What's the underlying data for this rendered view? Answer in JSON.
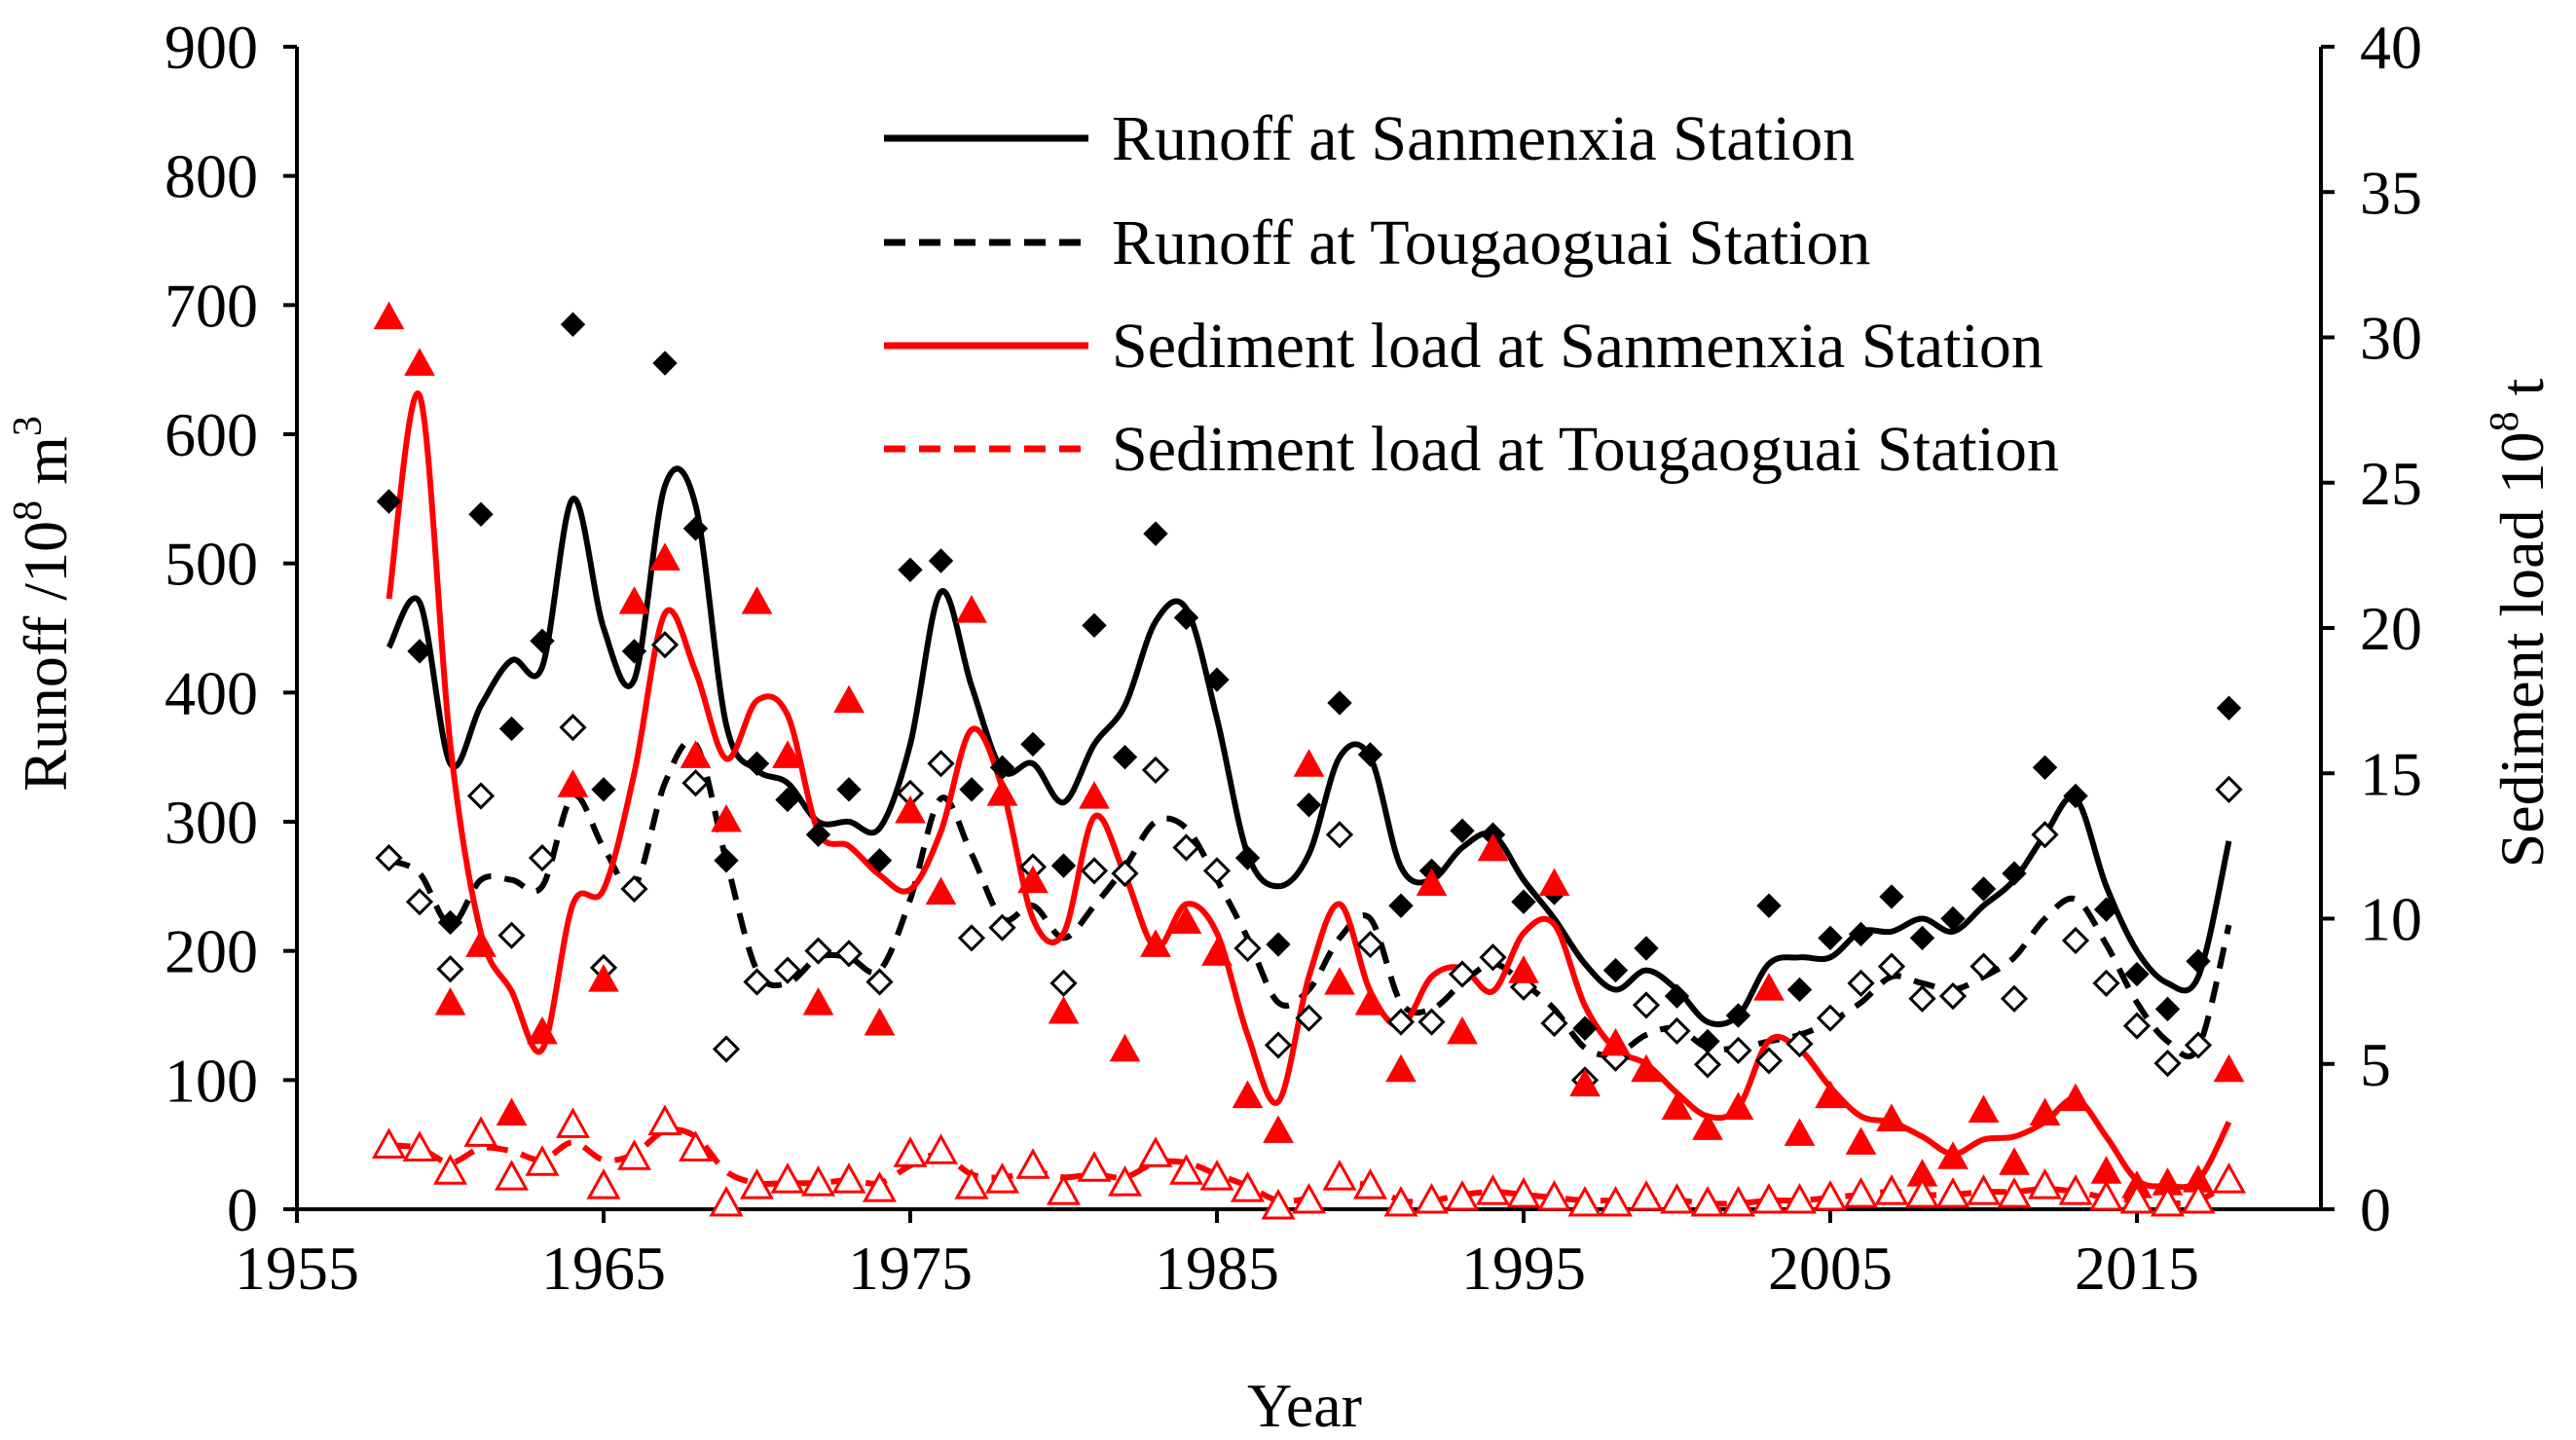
{
  "chart_data": {
    "type": "line",
    "title": "",
    "xlabel": "Year",
    "ylabel_left": "Runoff /10^8 m^3",
    "ylabel_right": "Sediment load 10^8 t",
    "ylabel_left_parts": {
      "main": "Runoff /10",
      "sup1": "8",
      "unit": " m",
      "sup2": "3"
    },
    "ylabel_right_parts": {
      "main": "Sediment load 10",
      "sup1": "8",
      "unit": " t"
    },
    "xlim": [
      1955,
      2021
    ],
    "ylim_left": [
      0,
      900
    ],
    "ylim_right": [
      0,
      40
    ],
    "x_ticks": [
      1955,
      1965,
      1975,
      1985,
      1995,
      2005,
      2015
    ],
    "y_left_ticks": [
      0,
      100,
      200,
      300,
      400,
      500,
      600,
      700,
      800,
      900
    ],
    "y_right_ticks": [
      0,
      5,
      10,
      15,
      20,
      25,
      30,
      35,
      40
    ],
    "legend_position": "top-right",
    "years": [
      1958,
      1959,
      1960,
      1961,
      1962,
      1963,
      1964,
      1965,
      1966,
      1967,
      1968,
      1969,
      1970,
      1971,
      1972,
      1973,
      1974,
      1975,
      1976,
      1977,
      1978,
      1979,
      1980,
      1981,
      1982,
      1983,
      1984,
      1985,
      1986,
      1987,
      1988,
      1989,
      1990,
      1991,
      1992,
      1993,
      1994,
      1995,
      1996,
      1997,
      1998,
      1999,
      2000,
      2001,
      2002,
      2003,
      2004,
      2005,
      2006,
      2007,
      2008,
      2009,
      2010,
      2011,
      2012,
      2013,
      2014,
      2015,
      2016,
      2017,
      2018
    ],
    "series": [
      {
        "name": "Runoff at Sanmenxia Station",
        "axis": "left",
        "color": "#000000",
        "line_style": "solid",
        "marker": "diamond-filled",
        "values": [
          548,
          432,
          222,
          538,
          372,
          440,
          685,
          325,
          432,
          655,
          527,
          270,
          345,
          317,
          290,
          325,
          270,
          495,
          502,
          325,
          342,
          360,
          266,
          452,
          350,
          523,
          458,
          410,
          272,
          205,
          313,
          392,
          352,
          235,
          262,
          293,
          290,
          238,
          245,
          140,
          185,
          202,
          165,
          130,
          150,
          235,
          170,
          210,
          213,
          242,
          210,
          225,
          248,
          260,
          342,
          320,
          232,
          182,
          155,
          192,
          388
        ]
      },
      {
        "name": "Runoff at Tougaoguai Station",
        "axis": "left",
        "color": "#000000",
        "line_style": "dashed",
        "marker": "diamond-open",
        "values": [
          272,
          238,
          186,
          320,
          212,
          272,
          373,
          187,
          248,
          437,
          330,
          124,
          176,
          185,
          200,
          198,
          176,
          322,
          345,
          210,
          218,
          265,
          175,
          262,
          260,
          340,
          280,
          262,
          202,
          127,
          148,
          290,
          205,
          145,
          145,
          182,
          195,
          172,
          144,
          100,
          117,
          158,
          138,
          112,
          123,
          115,
          128,
          148,
          175,
          188,
          163,
          165,
          188,
          163,
          290,
          208,
          175,
          142,
          113,
          127,
          325
        ]
      },
      {
        "name": "Sediment load at Sanmenxia Station",
        "axis": "right",
        "color": "#ff0000",
        "line_style": "solid",
        "marker": "triangle-filled",
        "values": [
          30.7,
          29.1,
          7.1,
          9.1,
          3.3,
          6.1,
          14.6,
          7.9,
          20.9,
          22.4,
          15.6,
          13.4,
          20.9,
          15.6,
          7.1,
          17.5,
          6.4,
          13.7,
          10.9,
          20.6,
          14.3,
          11.3,
          6.8,
          14.2,
          5.5,
          9.1,
          9.9,
          8.8,
          3.9,
          2.7,
          15.3,
          7.8,
          7.1,
          4.8,
          11.2,
          6.1,
          12.4,
          8.2,
          11.2,
          4.3,
          5.7,
          4.8,
          3.5,
          2.8,
          3.5,
          7.6,
          2.6,
          3.9,
          2.3,
          3.1,
          1.2,
          1.8,
          3.4,
          1.6,
          3.3,
          3.8,
          1.3,
          0.8,
          0.9,
          1.0,
          4.8
        ]
      },
      {
        "name": "Sediment load at Tougaoguai Station",
        "axis": "right",
        "color": "#ff0000",
        "line_style": "dashed",
        "marker": "triangle-open",
        "values": [
          2.2,
          2.1,
          1.3,
          2.6,
          1.1,
          1.6,
          2.9,
          0.8,
          1.8,
          3.0,
          2.1,
          0.2,
          0.8,
          1.0,
          0.9,
          1.0,
          0.7,
          1.9,
          2.0,
          0.8,
          1.0,
          1.5,
          0.6,
          1.4,
          0.9,
          1.9,
          1.3,
          1.1,
          0.7,
          0.1,
          0.3,
          1.1,
          0.8,
          0.2,
          0.3,
          0.4,
          0.6,
          0.5,
          0.4,
          0.2,
          0.2,
          0.4,
          0.3,
          0.2,
          0.2,
          0.3,
          0.3,
          0.4,
          0.5,
          0.6,
          0.5,
          0.5,
          0.6,
          0.5,
          0.8,
          0.6,
          0.4,
          0.3,
          0.2,
          0.3,
          1.0
        ]
      }
    ],
    "smooth_curves": {
      "runoff_sanmenxia": [
        [
          1958,
          435
        ],
        [
          1959,
          470
        ],
        [
          1960,
          345
        ],
        [
          1961,
          390
        ],
        [
          1962,
          425
        ],
        [
          1963,
          420
        ],
        [
          1964,
          550
        ],
        [
          1965,
          450
        ],
        [
          1966,
          410
        ],
        [
          1967,
          560
        ],
        [
          1968,
          545
        ],
        [
          1969,
          375
        ],
        [
          1970,
          340
        ],
        [
          1971,
          330
        ],
        [
          1972,
          300
        ],
        [
          1973,
          300
        ],
        [
          1974,
          295
        ],
        [
          1975,
          360
        ],
        [
          1976,
          478
        ],
        [
          1977,
          405
        ],
        [
          1978,
          340
        ],
        [
          1979,
          345
        ],
        [
          1980,
          315
        ],
        [
          1981,
          360
        ],
        [
          1982,
          390
        ],
        [
          1983,
          455
        ],
        [
          1984,
          465
        ],
        [
          1985,
          380
        ],
        [
          1986,
          275
        ],
        [
          1987,
          250
        ],
        [
          1988,
          275
        ],
        [
          1989,
          350
        ],
        [
          1990,
          350
        ],
        [
          1991,
          265
        ],
        [
          1992,
          255
        ],
        [
          1993,
          280
        ],
        [
          1994,
          290
        ],
        [
          1995,
          255
        ],
        [
          1996,
          225
        ],
        [
          1997,
          190
        ],
        [
          1998,
          170
        ],
        [
          1999,
          185
        ],
        [
          2000,
          170
        ],
        [
          2001,
          145
        ],
        [
          2002,
          150
        ],
        [
          2003,
          190
        ],
        [
          2004,
          195
        ],
        [
          2005,
          195
        ],
        [
          2006,
          215
        ],
        [
          2007,
          215
        ],
        [
          2008,
          225
        ],
        [
          2009,
          215
        ],
        [
          2010,
          235
        ],
        [
          2011,
          255
        ],
        [
          2012,
          290
        ],
        [
          2013,
          318
        ],
        [
          2014,
          250
        ],
        [
          2015,
          200
        ],
        [
          2016,
          175
        ],
        [
          2017,
          180
        ],
        [
          2018,
          285
        ]
      ],
      "runoff_tougaoguai": [
        [
          1958,
          270
        ],
        [
          1959,
          260
        ],
        [
          1960,
          220
        ],
        [
          1961,
          255
        ],
        [
          1962,
          255
        ],
        [
          1963,
          250
        ],
        [
          1964,
          320
        ],
        [
          1965,
          280
        ],
        [
          1966,
          250
        ],
        [
          1967,
          330
        ],
        [
          1968,
          360
        ],
        [
          1969,
          270
        ],
        [
          1970,
          185
        ],
        [
          1971,
          175
        ],
        [
          1972,
          195
        ],
        [
          1973,
          195
        ],
        [
          1974,
          185
        ],
        [
          1975,
          240
        ],
        [
          1976,
          318
        ],
        [
          1977,
          275
        ],
        [
          1978,
          225
        ],
        [
          1979,
          235
        ],
        [
          1980,
          210
        ],
        [
          1981,
          235
        ],
        [
          1982,
          265
        ],
        [
          1983,
          300
        ],
        [
          1984,
          295
        ],
        [
          1985,
          255
        ],
        [
          1986,
          210
        ],
        [
          1987,
          160
        ],
        [
          1988,
          170
        ],
        [
          1989,
          210
        ],
        [
          1990,
          225
        ],
        [
          1991,
          160
        ],
        [
          1992,
          155
        ],
        [
          1993,
          175
        ],
        [
          1994,
          190
        ],
        [
          1995,
          175
        ],
        [
          1996,
          155
        ],
        [
          1997,
          125
        ],
        [
          1998,
          120
        ],
        [
          1999,
          135
        ],
        [
          2000,
          140
        ],
        [
          2001,
          125
        ],
        [
          2002,
          125
        ],
        [
          2003,
          130
        ],
        [
          2004,
          135
        ],
        [
          2005,
          145
        ],
        [
          2006,
          160
        ],
        [
          2007,
          180
        ],
        [
          2008,
          175
        ],
        [
          2009,
          170
        ],
        [
          2010,
          180
        ],
        [
          2011,
          195
        ],
        [
          2012,
          225
        ],
        [
          2013,
          240
        ],
        [
          2014,
          205
        ],
        [
          2015,
          160
        ],
        [
          2016,
          130
        ],
        [
          2017,
          125
        ],
        [
          2018,
          220
        ]
      ],
      "sediment_sanmenxia": [
        [
          1958,
          21.0
        ],
        [
          1959,
          28.0
        ],
        [
          1960,
          16.0
        ],
        [
          1961,
          9.5
        ],
        [
          1962,
          7.5
        ],
        [
          1963,
          5.5
        ],
        [
          1964,
          10.5
        ],
        [
          1965,
          11.0
        ],
        [
          1966,
          15.0
        ],
        [
          1967,
          20.5
        ],
        [
          1968,
          18.5
        ],
        [
          1969,
          15.5
        ],
        [
          1970,
          17.5
        ],
        [
          1971,
          17.0
        ],
        [
          1972,
          13.0
        ],
        [
          1973,
          12.5
        ],
        [
          1974,
          11.5
        ],
        [
          1975,
          11.0
        ],
        [
          1976,
          13.0
        ],
        [
          1977,
          16.5
        ],
        [
          1978,
          14.5
        ],
        [
          1979,
          10.0
        ],
        [
          1980,
          9.5
        ],
        [
          1981,
          13.5
        ],
        [
          1982,
          11.5
        ],
        [
          1983,
          9.0
        ],
        [
          1984,
          10.5
        ],
        [
          1985,
          9.5
        ],
        [
          1986,
          6.0
        ],
        [
          1987,
          3.7
        ],
        [
          1988,
          8.0
        ],
        [
          1989,
          10.5
        ],
        [
          1990,
          7.5
        ],
        [
          1991,
          6.3
        ],
        [
          1992,
          8.0
        ],
        [
          1993,
          8.3
        ],
        [
          1994,
          7.5
        ],
        [
          1995,
          9.5
        ],
        [
          1996,
          9.8
        ],
        [
          1997,
          7.0
        ],
        [
          1998,
          5.5
        ],
        [
          1999,
          5.0
        ],
        [
          2000,
          4.0
        ],
        [
          2001,
          3.2
        ],
        [
          2002,
          3.5
        ],
        [
          2003,
          5.8
        ],
        [
          2004,
          5.5
        ],
        [
          2005,
          4.2
        ],
        [
          2006,
          3.2
        ],
        [
          2007,
          3.0
        ],
        [
          2008,
          2.5
        ],
        [
          2009,
          1.9
        ],
        [
          2010,
          2.4
        ],
        [
          2011,
          2.5
        ],
        [
          2012,
          3.0
        ],
        [
          2013,
          3.8
        ],
        [
          2014,
          2.5
        ],
        [
          2015,
          1.0
        ],
        [
          2016,
          0.8
        ],
        [
          2017,
          1.0
        ],
        [
          2018,
          3.0
        ]
      ],
      "sediment_tougaoguai": [
        [
          1958,
          2.2
        ],
        [
          1959,
          2.1
        ],
        [
          1960,
          1.6
        ],
        [
          1961,
          2.1
        ],
        [
          1962,
          2.0
        ],
        [
          1963,
          1.7
        ],
        [
          1964,
          2.3
        ],
        [
          1965,
          1.7
        ],
        [
          1966,
          1.9
        ],
        [
          1967,
          2.7
        ],
        [
          1968,
          2.5
        ],
        [
          1969,
          1.3
        ],
        [
          1970,
          0.9
        ],
        [
          1971,
          0.9
        ],
        [
          1972,
          0.9
        ],
        [
          1973,
          1.0
        ],
        [
          1974,
          0.9
        ],
        [
          1975,
          1.5
        ],
        [
          1976,
          1.9
        ],
        [
          1977,
          1.2
        ],
        [
          1978,
          1.1
        ],
        [
          1979,
          1.3
        ],
        [
          1980,
          1.1
        ],
        [
          1981,
          1.2
        ],
        [
          1982,
          1.1
        ],
        [
          1983,
          1.6
        ],
        [
          1984,
          1.6
        ],
        [
          1985,
          1.2
        ],
        [
          1986,
          0.8
        ],
        [
          1987,
          0.3
        ],
        [
          1988,
          0.4
        ],
        [
          1989,
          0.9
        ],
        [
          1990,
          0.8
        ],
        [
          1991,
          0.3
        ],
        [
          1992,
          0.3
        ],
        [
          1993,
          0.5
        ],
        [
          1994,
          0.6
        ],
        [
          1995,
          0.5
        ],
        [
          1996,
          0.4
        ],
        [
          1997,
          0.3
        ],
        [
          1998,
          0.3
        ],
        [
          1999,
          0.3
        ],
        [
          2000,
          0.3
        ],
        [
          2001,
          0.2
        ],
        [
          2002,
          0.2
        ],
        [
          2003,
          0.3
        ],
        [
          2004,
          0.3
        ],
        [
          2005,
          0.4
        ],
        [
          2006,
          0.5
        ],
        [
          2007,
          0.6
        ],
        [
          2008,
          0.5
        ],
        [
          2009,
          0.5
        ],
        [
          2010,
          0.6
        ],
        [
          2011,
          0.6
        ],
        [
          2012,
          0.7
        ],
        [
          2013,
          0.6
        ],
        [
          2014,
          0.4
        ],
        [
          2015,
          0.3
        ],
        [
          2016,
          0.2
        ],
        [
          2017,
          0.3
        ],
        [
          2018,
          0.9
        ]
      ]
    }
  }
}
